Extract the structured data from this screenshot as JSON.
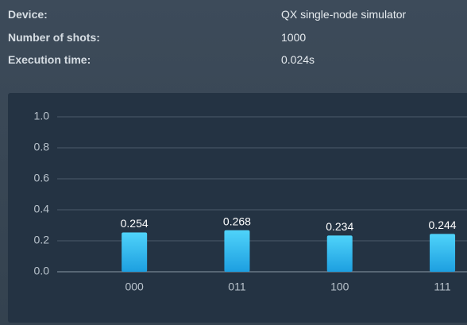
{
  "info": {
    "rows": [
      {
        "label": "Device:",
        "value": "QX single-node simulator"
      },
      {
        "label": "Number of shots:",
        "value": "1000"
      },
      {
        "label": "Execution time:",
        "value": "0.024s"
      }
    ]
  },
  "chart_data": {
    "type": "bar",
    "categories": [
      "000",
      "011",
      "100",
      "111"
    ],
    "values": [
      0.254,
      0.268,
      0.234,
      0.244
    ],
    "color": "#2bb5ec",
    "ylim": [
      0,
      1
    ],
    "yticks": [
      {
        "value": 0,
        "label": "0.0"
      },
      0.2,
      0.4,
      0.6,
      0.8,
      {
        "value": 1,
        "label": "1.0"
      }
    ],
    "grid": true
  }
}
